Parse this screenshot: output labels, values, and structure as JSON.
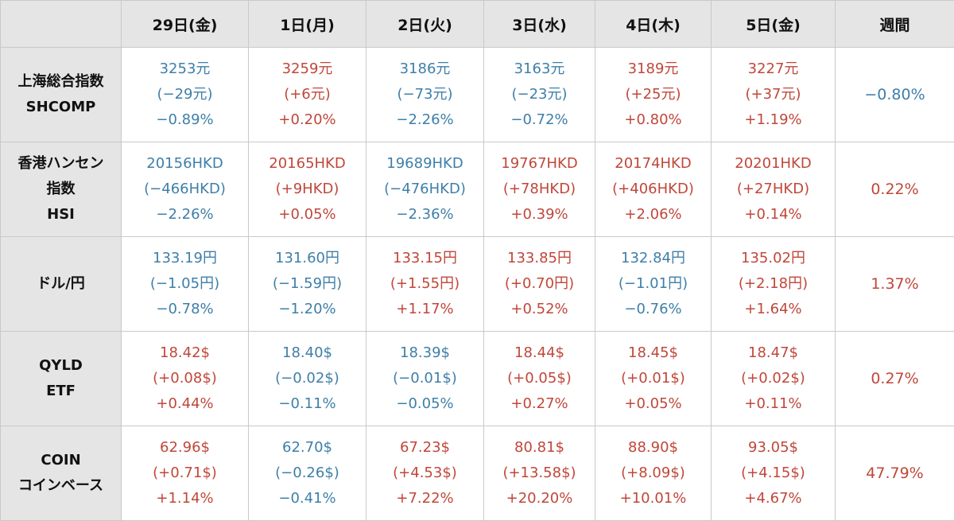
{
  "header": {
    "corner": "",
    "columns": [
      "29日(金)",
      "1日(月)",
      "2日(火)",
      "3日(水)",
      "4日(木)",
      "5日(金)",
      "週間"
    ]
  },
  "colors": {
    "up": "#c0473a",
    "down": "#3e7fa8",
    "header_bg": "#e5e5e5"
  },
  "rows": [
    {
      "name": [
        "上海総合指数",
        "SHCOMP"
      ],
      "cells": [
        {
          "dir": "down",
          "lines": [
            "3253元",
            "(−29元)",
            "−0.89%"
          ]
        },
        {
          "dir": "up",
          "lines": [
            "3259元",
            "(+6元)",
            "+0.20%"
          ]
        },
        {
          "dir": "down",
          "lines": [
            "3186元",
            "(−73元)",
            "−2.26%"
          ]
        },
        {
          "dir": "down",
          "lines": [
            "3163元",
            "(−23元)",
            "−0.72%"
          ]
        },
        {
          "dir": "up",
          "lines": [
            "3189元",
            "(+25元)",
            "+0.80%"
          ]
        },
        {
          "dir": "up",
          "lines": [
            "3227元",
            "(+37元)",
            "+1.19%"
          ]
        }
      ],
      "weekly": {
        "dir": "down",
        "value": "−0.80%"
      }
    },
    {
      "name": [
        "香港ハンセン",
        "指数",
        "HSI"
      ],
      "cells": [
        {
          "dir": "down",
          "lines": [
            "20156HKD",
            "(−466HKD)",
            "−2.26%"
          ]
        },
        {
          "dir": "up",
          "lines": [
            "20165HKD",
            "(+9HKD)",
            "+0.05%"
          ]
        },
        {
          "dir": "down",
          "lines": [
            "19689HKD",
            "(−476HKD)",
            "−2.36%"
          ]
        },
        {
          "dir": "up",
          "lines": [
            "19767HKD",
            "(+78HKD)",
            "+0.39%"
          ]
        },
        {
          "dir": "up",
          "lines": [
            "20174HKD",
            "(+406HKD)",
            "+2.06%"
          ]
        },
        {
          "dir": "up",
          "lines": [
            "20201HKD",
            "(+27HKD)",
            "+0.14%"
          ]
        }
      ],
      "weekly": {
        "dir": "up",
        "value": "0.22%"
      }
    },
    {
      "name": [
        "ドル/円"
      ],
      "cells": [
        {
          "dir": "down",
          "lines": [
            "133.19円",
            "(−1.05円)",
            "−0.78%"
          ]
        },
        {
          "dir": "down",
          "lines": [
            "131.60円",
            "(−1.59円)",
            "−1.20%"
          ]
        },
        {
          "dir": "up",
          "lines": [
            "133.15円",
            "(+1.55円)",
            "+1.17%"
          ]
        },
        {
          "dir": "up",
          "lines": [
            "133.85円",
            "(+0.70円)",
            "+0.52%"
          ]
        },
        {
          "dir": "down",
          "lines": [
            "132.84円",
            "(−1.01円)",
            "−0.76%"
          ]
        },
        {
          "dir": "up",
          "lines": [
            "135.02円",
            "(+2.18円)",
            "+1.64%"
          ]
        }
      ],
      "weekly": {
        "dir": "up",
        "value": "1.37%"
      }
    },
    {
      "name": [
        "QYLD",
        "ETF"
      ],
      "cells": [
        {
          "dir": "up",
          "lines": [
            "18.42$",
            "(+0.08$)",
            "+0.44%"
          ]
        },
        {
          "dir": "down",
          "lines": [
            "18.40$",
            "(−0.02$)",
            "−0.11%"
          ]
        },
        {
          "dir": "down",
          "lines": [
            "18.39$",
            "(−0.01$)",
            "−0.05%"
          ]
        },
        {
          "dir": "up",
          "lines": [
            "18.44$",
            "(+0.05$)",
            "+0.27%"
          ]
        },
        {
          "dir": "up",
          "lines": [
            "18.45$",
            "(+0.01$)",
            "+0.05%"
          ]
        },
        {
          "dir": "up",
          "lines": [
            "18.47$",
            "(+0.02$)",
            "+0.11%"
          ]
        }
      ],
      "weekly": {
        "dir": "up",
        "value": "0.27%"
      }
    },
    {
      "name": [
        "COIN",
        "コインベース"
      ],
      "cells": [
        {
          "dir": "up",
          "lines": [
            "62.96$",
            "(+0.71$)",
            "+1.14%"
          ]
        },
        {
          "dir": "down",
          "lines": [
            "62.70$",
            "(−0.26$)",
            "−0.41%"
          ]
        },
        {
          "dir": "up",
          "lines": [
            "67.23$",
            "(+4.53$)",
            "+7.22%"
          ]
        },
        {
          "dir": "up",
          "lines": [
            "80.81$",
            "(+13.58$)",
            "+20.20%"
          ]
        },
        {
          "dir": "up",
          "lines": [
            "88.90$",
            "(+8.09$)",
            "+10.01%"
          ]
        },
        {
          "dir": "up",
          "lines": [
            "93.05$",
            "(+4.15$)",
            "+4.67%"
          ]
        }
      ],
      "weekly": {
        "dir": "up",
        "value": "47.79%"
      }
    }
  ]
}
